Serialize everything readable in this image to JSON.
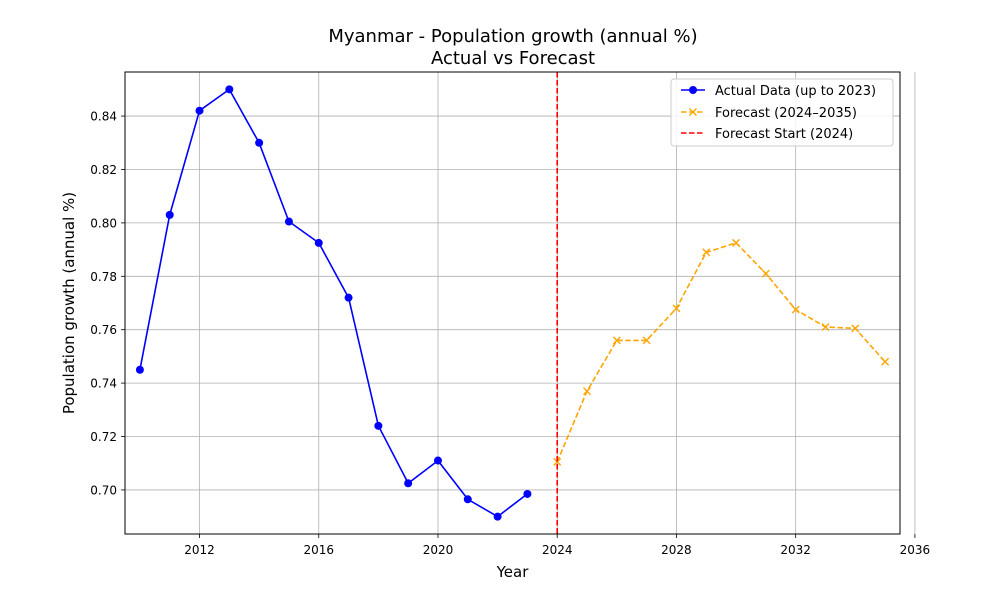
{
  "chart_data": {
    "type": "line",
    "title_line1": "Myanmar - Population growth (annual %)",
    "title_line2": "Actual vs Forecast",
    "xlabel": "Year",
    "ylabel": "Population growth (annual %)",
    "xlim": [
      2009.5,
      2035.5
    ],
    "ylim": [
      0.6835,
      0.8565
    ],
    "xticks": [
      2012,
      2016,
      2020,
      2024,
      2028,
      2032,
      2036
    ],
    "yticks": [
      0.7,
      0.72,
      0.74,
      0.76,
      0.78,
      0.8,
      0.82,
      0.84
    ],
    "grid": true,
    "legend_position": "top-right",
    "series": [
      {
        "name": "Actual Data (up to 2023)",
        "color": "#0000ff",
        "style": "solid",
        "marker": "circle",
        "x": [
          2010,
          2011,
          2012,
          2013,
          2014,
          2015,
          2016,
          2017,
          2018,
          2019,
          2020,
          2021,
          2022,
          2023
        ],
        "y": [
          0.745,
          0.803,
          0.842,
          0.85,
          0.83,
          0.8005,
          0.7925,
          0.772,
          0.724,
          0.7025,
          0.711,
          0.6965,
          0.69,
          0.6985
        ]
      },
      {
        "name": "Forecast (2024–2035)",
        "color": "#ffa500",
        "style": "dashed",
        "marker": "x",
        "x": [
          2024,
          2025,
          2026,
          2027,
          2028,
          2029,
          2030,
          2031,
          2032,
          2033,
          2034,
          2035
        ],
        "y": [
          0.7105,
          0.737,
          0.756,
          0.756,
          0.768,
          0.789,
          0.7925,
          0.781,
          0.7675,
          0.761,
          0.7605,
          0.748
        ]
      }
    ],
    "vline": {
      "name": "Forecast Start (2024)",
      "x": 2024,
      "color": "#ff0000",
      "style": "dashed"
    }
  }
}
